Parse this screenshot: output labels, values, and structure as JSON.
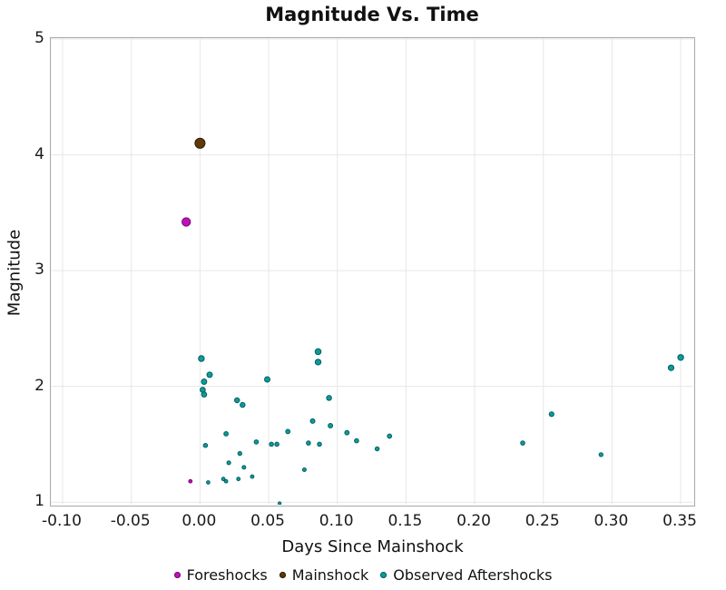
{
  "title": "Magnitude Vs. Time",
  "colors": {
    "background": "#ffffff",
    "spine": "#a8a8a8",
    "gridline": "#e7e7e7",
    "text": "#141414",
    "foreshocks_fill": "#bd12bb",
    "foreshocks_edge": "#750d73",
    "mainshock_fill": "#60390a",
    "mainshock_edge": "#301c03",
    "aftershocks_fill": "#0c9b9b",
    "aftershocks_edge": "#045f60"
  },
  "legend": {
    "items": [
      {
        "label": "Foreshocks",
        "icon": "foreshocks-marker-icon",
        "color": "#bd12bb",
        "edge": "#750d73"
      },
      {
        "label": "Mainshock",
        "icon": "mainshock-marker-icon",
        "color": "#60390a",
        "edge": "#301c03"
      },
      {
        "label": "Observed Aftershocks",
        "icon": "aftershocks-marker-icon",
        "color": "#0c9b9b",
        "edge": "#045f60"
      }
    ]
  },
  "chart_data": {
    "type": "scatter",
    "title": "Magnitude Vs. Time",
    "xlabel": "Days Since Mainshock",
    "ylabel": "Magnitude",
    "xlim": [
      -0.1086,
      0.3592
    ],
    "ylim": [
      0.978,
      5.008
    ],
    "x_ticks": [
      -0.1,
      -0.05,
      0.0,
      0.05,
      0.1,
      0.15,
      0.2,
      0.25,
      0.3,
      0.35
    ],
    "x_tick_labels": [
      "-0.10",
      "-0.05",
      "0.00",
      "0.05",
      "0.10",
      "0.15",
      "0.20",
      "0.25",
      "0.30",
      "0.35"
    ],
    "y_ticks": [
      1,
      2,
      3,
      4,
      5
    ],
    "y_tick_labels": [
      "1",
      "2",
      "3",
      "4",
      "5"
    ],
    "grid": true,
    "legend_position": "bottom-center",
    "marker_size_rule": "radius_px = 0.4 + 1.25 * magnitude",
    "series": [
      {
        "name": "Foreshocks",
        "fill": "#bd12bb",
        "edge": "#750d73",
        "points": [
          [
            -0.01,
            3.42
          ],
          [
            -0.007,
            1.18
          ]
        ]
      },
      {
        "name": "Mainshock",
        "fill": "#60390a",
        "edge": "#301c03",
        "points": [
          [
            0.0,
            4.1
          ]
        ]
      },
      {
        "name": "Observed Aftershocks",
        "fill": "#0c9b9b",
        "edge": "#045f60",
        "points": [
          [
            0.001,
            2.24
          ],
          [
            0.007,
            2.1
          ],
          [
            0.003,
            2.04
          ],
          [
            0.002,
            1.97
          ],
          [
            0.003,
            1.93
          ],
          [
            0.049,
            2.06
          ],
          [
            0.086,
            2.3
          ],
          [
            0.086,
            2.21
          ],
          [
            0.027,
            1.88
          ],
          [
            0.031,
            1.84
          ],
          [
            0.094,
            1.9
          ],
          [
            0.082,
            1.7
          ],
          [
            0.095,
            1.66
          ],
          [
            0.019,
            1.59
          ],
          [
            0.004,
            1.49
          ],
          [
            0.041,
            1.52
          ],
          [
            0.052,
            1.5
          ],
          [
            0.056,
            1.5
          ],
          [
            0.064,
            1.61
          ],
          [
            0.079,
            1.51
          ],
          [
            0.087,
            1.5
          ],
          [
            0.029,
            1.42
          ],
          [
            0.021,
            1.34
          ],
          [
            0.032,
            1.3
          ],
          [
            0.076,
            1.28
          ],
          [
            0.006,
            1.17
          ],
          [
            0.017,
            1.2
          ],
          [
            0.019,
            1.18
          ],
          [
            0.028,
            1.2
          ],
          [
            0.038,
            1.22
          ],
          [
            0.058,
            0.99
          ],
          [
            0.107,
            1.6
          ],
          [
            0.114,
            1.53
          ],
          [
            0.129,
            1.46
          ],
          [
            0.138,
            1.57
          ],
          [
            0.235,
            1.51
          ],
          [
            0.256,
            1.76
          ],
          [
            0.292,
            1.41
          ],
          [
            0.343,
            2.16
          ],
          [
            0.35,
            2.25
          ]
        ]
      }
    ]
  }
}
